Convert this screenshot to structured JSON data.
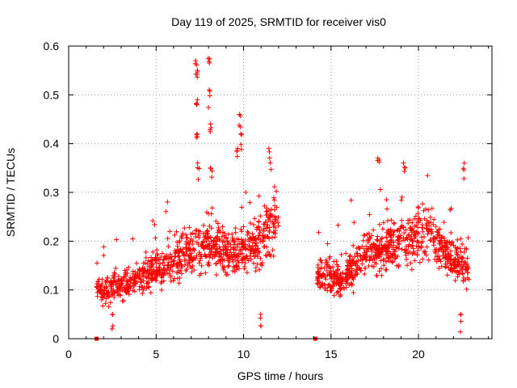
{
  "chart_data": {
    "type": "scatter",
    "title": "Day 119 of 2025, SRMTID for receiver vis0",
    "xlabel": "GPS time / hours",
    "ylabel": "SRMTID / TECUs",
    "xlim": [
      0,
      24.2
    ],
    "ylim": [
      0,
      0.6
    ],
    "xticks": [
      0,
      5,
      10,
      15,
      20
    ],
    "xtick_labels": [
      "0",
      "5",
      "10",
      "15",
      "20"
    ],
    "yticks": [
      0,
      0.1,
      0.2,
      0.3,
      0.4,
      0.5,
      0.6
    ],
    "ytick_labels": [
      "0",
      "0.1",
      "0.2",
      "0.3",
      "0.4",
      "0.5",
      "0.6"
    ],
    "grid": true,
    "marker": "plus",
    "color": "#ff0000",
    "series": [
      {
        "name": "SRMTID",
        "segments": [
          {
            "x_start": 1.6,
            "x_end": 12.0,
            "base_profile": [
              [
                1.6,
                0.1
              ],
              [
                3.0,
                0.11
              ],
              [
                5.0,
                0.14
              ],
              [
                6.5,
                0.17
              ],
              [
                8.0,
                0.19
              ],
              [
                9.5,
                0.17
              ],
              [
                11.0,
                0.2
              ],
              [
                12.0,
                0.24
              ]
            ]
          },
          {
            "x_start": 14.2,
            "x_end": 22.9,
            "base_profile": [
              [
                14.2,
                0.13
              ],
              [
                15.5,
                0.12
              ],
              [
                16.5,
                0.16
              ],
              [
                18.0,
                0.18
              ],
              [
                19.5,
                0.21
              ],
              [
                20.5,
                0.22
              ],
              [
                21.5,
                0.17
              ],
              [
                22.9,
                0.15
              ]
            ]
          }
        ],
        "spikes": [
          {
            "x": 7.3,
            "y": 0.57
          },
          {
            "x": 7.4,
            "y": 0.55
          },
          {
            "x": 7.35,
            "y": 0.49
          },
          {
            "x": 7.3,
            "y": 0.42
          },
          {
            "x": 7.4,
            "y": 0.36
          },
          {
            "x": 8.0,
            "y": 0.575
          },
          {
            "x": 8.05,
            "y": 0.51
          },
          {
            "x": 8.1,
            "y": 0.44
          },
          {
            "x": 8.15,
            "y": 0.35
          },
          {
            "x": 9.6,
            "y": 0.39
          },
          {
            "x": 9.8,
            "y": 0.46
          },
          {
            "x": 9.9,
            "y": 0.42
          },
          {
            "x": 11.5,
            "y": 0.39
          },
          {
            "x": 17.7,
            "y": 0.37
          },
          {
            "x": 19.2,
            "y": 0.36
          },
          {
            "x": 22.6,
            "y": 0.36
          },
          {
            "x": 11.0,
            "y": 0.05
          },
          {
            "x": 22.4,
            "y": 0.05
          },
          {
            "x": 2.5,
            "y": 0.05
          }
        ],
        "zero_markers": [
          {
            "x": 1.6,
            "y": 0
          },
          {
            "x": 14.1,
            "y": 0
          }
        ]
      }
    ]
  }
}
